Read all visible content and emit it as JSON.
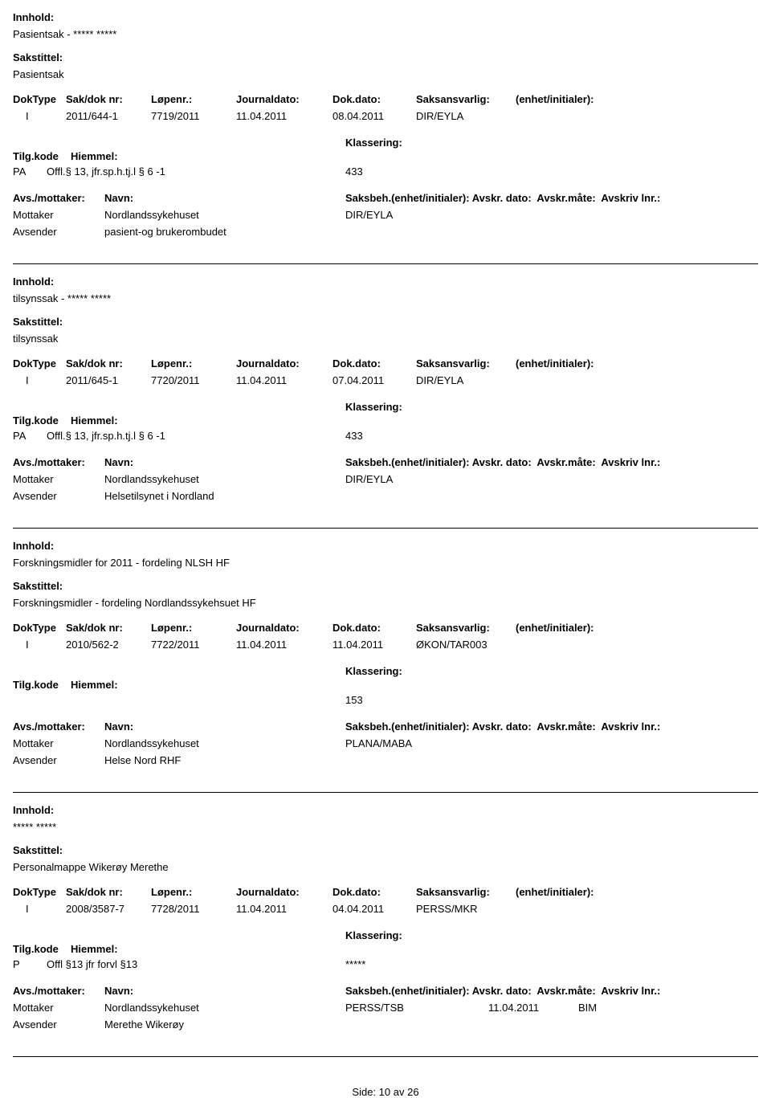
{
  "labels": {
    "innhold": "Innhold:",
    "sakstittel": "Sakstittel:",
    "doktype": "DokType",
    "sakdok": "Sak/dok nr:",
    "lopenr": "Løpenr.:",
    "journaldato": "Journaldato:",
    "dokdato": "Dok.dato:",
    "saksansvarlig": "Saksansvarlig:",
    "enhet": "(enhet/initialer):",
    "tilgkode": "Tilg.kode",
    "hiemmel": "Hiemmel:",
    "klassering": "Klassering:",
    "avsmottaker": "Avs./mottaker:",
    "navn": "Navn:",
    "saksbeh": "Saksbeh.(enhet/initialer):",
    "avskr_dato": "Avskr. dato:",
    "avskr_mate": "Avskr.måte:",
    "avskriv_lnr": "Avskriv lnr.:"
  },
  "records": [
    {
      "innhold": "Pasientsak - ***** *****",
      "sakstittel": "Pasientsak",
      "doktype": "I",
      "sakdok": "2011/644-1",
      "lopenr": "7719/2011",
      "journaldato": "11.04.2011",
      "dokdato": "08.04.2011",
      "saksansvarlig": "DIR/EYLA",
      "tilgkode": "PA",
      "hiemmel": "Offl.§ 13, jfr.sp.h.tj.l § 6 -1",
      "klassering": "433",
      "parties": [
        {
          "role": "Mottaker",
          "name": "Nordlandssykehuset",
          "beh": "DIR/EYLA",
          "adate": "",
          "amate": ""
        },
        {
          "role": "Avsender",
          "name": "pasient-og brukerombudet",
          "beh": "",
          "adate": "",
          "amate": ""
        }
      ]
    },
    {
      "innhold": "tilsynssak - ***** *****",
      "sakstittel": "tilsynssak",
      "doktype": "I",
      "sakdok": "2011/645-1",
      "lopenr": "7720/2011",
      "journaldato": "11.04.2011",
      "dokdato": "07.04.2011",
      "saksansvarlig": "DIR/EYLA",
      "tilgkode": "PA",
      "hiemmel": "Offl.§ 13, jfr.sp.h.tj.l § 6 -1",
      "klassering": "433",
      "parties": [
        {
          "role": "Mottaker",
          "name": "Nordlandssykehuset",
          "beh": "DIR/EYLA",
          "adate": "",
          "amate": ""
        },
        {
          "role": "Avsender",
          "name": "Helsetilsynet i Nordland",
          "beh": "",
          "adate": "",
          "amate": ""
        }
      ]
    },
    {
      "innhold": "Forskningsmidler for 2011 - fordeling NLSH HF",
      "sakstittel": "Forskningsmidler  - fordeling Nordlandssykehsuet HF",
      "doktype": "I",
      "sakdok": "2010/562-2",
      "lopenr": "7722/2011",
      "journaldato": "11.04.2011",
      "dokdato": "11.04.2011",
      "saksansvarlig": "ØKON/TAR003",
      "tilgkode": "",
      "hiemmel": "",
      "klassering": "153",
      "parties": [
        {
          "role": "Mottaker",
          "name": "Nordlandssykehuset",
          "beh": "PLANA/MABA",
          "adate": "",
          "amate": ""
        },
        {
          "role": "Avsender",
          "name": "Helse Nord RHF",
          "beh": "",
          "adate": "",
          "amate": ""
        }
      ]
    },
    {
      "innhold": "***** *****",
      "sakstittel": "Personalmappe Wikerøy Merethe",
      "doktype": "I",
      "sakdok": "2008/3587-7",
      "lopenr": "7728/2011",
      "journaldato": "11.04.2011",
      "dokdato": "04.04.2011",
      "saksansvarlig": "PERSS/MKR",
      "tilgkode": "P",
      "hiemmel": "Offl §13 jfr forvl §13",
      "klassering": "*****",
      "parties": [
        {
          "role": "Mottaker",
          "name": "Nordlandssykehuset",
          "beh": "PERSS/TSB",
          "adate": "11.04.2011",
          "amate": "BIM"
        },
        {
          "role": "Avsender",
          "name": "Merethe Wikerøy",
          "beh": "",
          "adate": "",
          "amate": ""
        }
      ]
    }
  ],
  "footer": {
    "side": "Side:",
    "page": "10",
    "av": "av",
    "total": "26"
  }
}
